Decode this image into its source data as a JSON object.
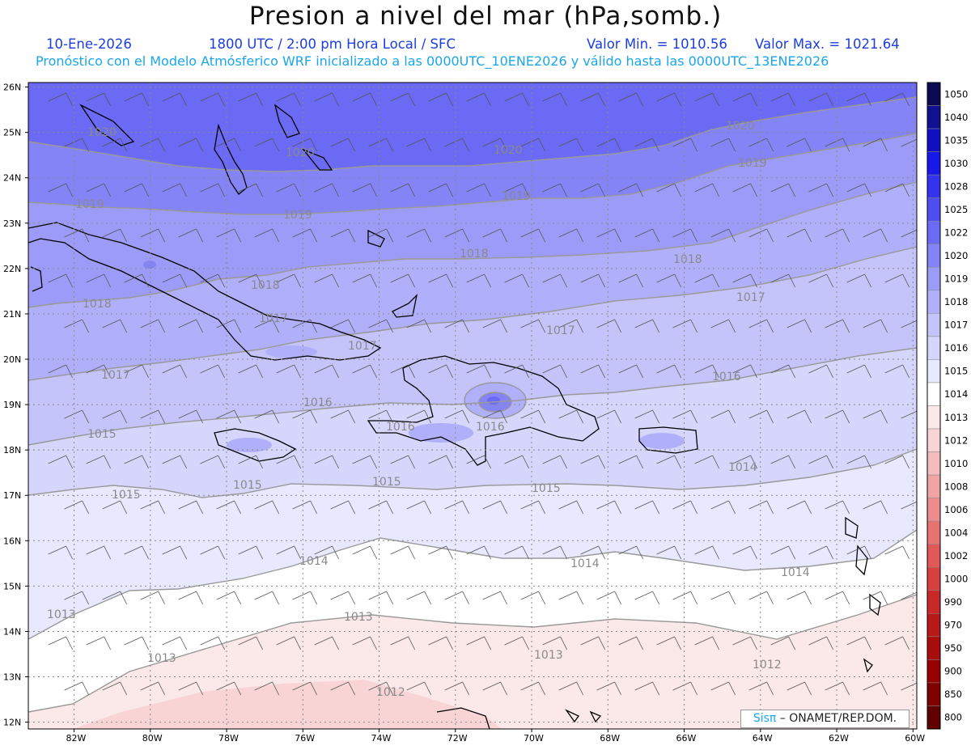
{
  "title": "Presion a nivel del mar (hPa,somb.)",
  "header": {
    "date": "10-Ene-2026",
    "time": "1800 UTC / 2:00 pm Hora Local / SFC",
    "min_label": "Valor Min. = 1010.56",
    "max_label": "Valor Max. = 1021.64",
    "forecast_line": "Pronóstico con el Modelo Atmósferico WRF inicializado a las 0000UTC_10ENE2026 y válido hasta las 0000UTC_13ENE2026"
  },
  "axes": {
    "lat_labels": [
      "26N",
      "25N",
      "24N",
      "23N",
      "22N",
      "21N",
      "20N",
      "19N",
      "18N",
      "17N",
      "16N",
      "15N",
      "14N",
      "13N",
      "12N"
    ],
    "lon_labels": [
      "82W",
      "80W",
      "78W",
      "76W",
      "74W",
      "72W",
      "70W",
      "68W",
      "66W",
      "64W",
      "62W",
      "60W"
    ]
  },
  "colorbar": {
    "levels": [
      "1050",
      "1040",
      "1035",
      "1030",
      "1028",
      "1025",
      "1022",
      "1020",
      "1019",
      "1018",
      "1017",
      "1016",
      "1015",
      "1014",
      "1013",
      "1012",
      "1010",
      "1008",
      "1006",
      "1004",
      "1002",
      "1000",
      "990",
      "970",
      "950",
      "900",
      "850",
      "800"
    ],
    "colors": [
      "#0a0a55",
      "#101090",
      "#1010c0",
      "#1818e8",
      "#3434f0",
      "#4e4ef2",
      "#6a6af4",
      "#8484f6",
      "#9c9cf8",
      "#b0b0fa",
      "#c4c4fb",
      "#d6d6fc",
      "#e8e8fe",
      "#ffffff",
      "#fbe8e8",
      "#f8d4d4",
      "#f4bcbc",
      "#f0a4a4",
      "#ec8c8c",
      "#e87272",
      "#e05858",
      "#d84040",
      "#c82828",
      "#b81818",
      "#a80c0c",
      "#980000",
      "#800000",
      "#600000"
    ]
  },
  "contour_labels": [
    "1020",
    "1020",
    "1020",
    "1020",
    "1019",
    "1019",
    "1019",
    "1019",
    "1018",
    "1018",
    "1018",
    "1018",
    "1017",
    "1017",
    "1017",
    "1017",
    "1017",
    "1016",
    "1016",
    "1016",
    "1016",
    "1015",
    "1015",
    "1015",
    "1015",
    "1015",
    "1014",
    "1014",
    "1014",
    "1014",
    "1013",
    "1013",
    "1013",
    "1013",
    "1012",
    "1012"
  ],
  "credit": {
    "brand": "Sisπ",
    "text": " – ONAMET/REP.DOM."
  }
}
